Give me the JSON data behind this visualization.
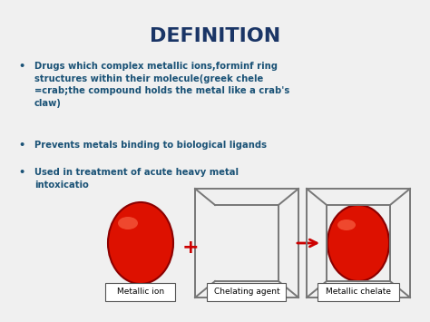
{
  "title": "DEFINITION",
  "title_color": "#1a3566",
  "title_fontsize": 16,
  "title_fontweight": "bold",
  "background_color": "#f0f0f0",
  "bullet_color": "#1a5276",
  "bullet_fontsize": 7.2,
  "bullets": [
    "Drugs which complex metallic ions,forminf ring\nstructures within their molecule(greek chele\n=crab;the compound holds the metal like a crab's\nclaw)",
    "Prevents metals binding to biological ligands",
    "Used in treatment of acute heavy metal\nintoxicatio"
  ],
  "diagram_labels": [
    "Metallic ion",
    "Chelating agent",
    "Metallic chelate"
  ],
  "label_fontsize": 6.5,
  "plus_color": "#cc0000",
  "arrow_color": "#cc0000",
  "ellipse_face": "#dd1100",
  "ellipse_edge": "#8b0000",
  "cage_color": "#777777",
  "label_box_edge": "#555555"
}
